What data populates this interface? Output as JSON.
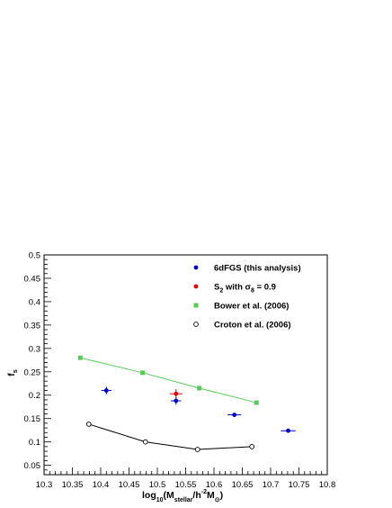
{
  "chart_data": {
    "type": "scatter",
    "xlabel_parts": {
      "base": "log",
      "base_sub": "10",
      "open": "(M",
      "m_sub": "stellar",
      "mid": "/h",
      "exp": "-2",
      "m2": "M",
      "sun": "⊙",
      "close": ")"
    },
    "ylabel_parts": {
      "base": "f",
      "sub": "s"
    },
    "xlim": [
      10.3,
      10.8
    ],
    "ylim": [
      0.03,
      0.5
    ],
    "x_ticks": [
      "10.3",
      "10.35",
      "10.4",
      "10.45",
      "10.5",
      "10.55",
      "10.6",
      "10.65",
      "10.7",
      "10.75",
      "10.8"
    ],
    "y_ticks": [
      "0.05",
      "0.1",
      "0.15",
      "0.2",
      "0.25",
      "0.3",
      "0.35",
      "0.4",
      "0.45",
      "0.5"
    ],
    "x_tick_values": [
      10.3,
      10.35,
      10.4,
      10.45,
      10.5,
      10.55,
      10.6,
      10.65,
      10.7,
      10.75,
      10.8
    ],
    "y_tick_values": [
      0.05,
      0.1,
      0.15,
      0.2,
      0.25,
      0.3,
      0.35,
      0.4,
      0.45,
      0.5
    ],
    "grid": false,
    "legend_position": "top-right",
    "series": [
      {
        "name": "6dFGS (this analysis)",
        "color": "#0000cc",
        "marker": "filled-circle",
        "points": [
          {
            "x": 10.41,
            "y": 0.21,
            "xerr": 0.009,
            "yerr": 0.008
          },
          {
            "x": 10.533,
            "y": 0.188,
            "xerr": 0.009,
            "yerr": 0.008
          },
          {
            "x": 10.636,
            "y": 0.158,
            "xerr": 0.012,
            "yerr": 0.004
          },
          {
            "x": 10.731,
            "y": 0.124,
            "xerr": 0.013,
            "yerr": 0.002
          }
        ]
      },
      {
        "name": "S_2 with σ_8 = 0.9",
        "name_parts": {
          "s": "S",
          "s_sub": "2",
          "with": " with ",
          "sigma": "σ",
          "sigma_sub": "8",
          "eq": " = 0.9"
        },
        "color": "#e00000",
        "marker": "filled-circle",
        "points": [
          {
            "x": 10.533,
            "y": 0.203,
            "xerr": 0.011,
            "yerr": 0.01
          }
        ]
      },
      {
        "name": "Bower et al. (2006)",
        "color": "#55cc55",
        "marker": "filled-square",
        "line": true,
        "points": [
          {
            "x": 10.364,
            "y": 0.28
          },
          {
            "x": 10.474,
            "y": 0.248
          },
          {
            "x": 10.574,
            "y": 0.215
          },
          {
            "x": 10.675,
            "y": 0.184
          }
        ]
      },
      {
        "name": "Croton et al. (2006)",
        "color": "#000000",
        "marker": "open-circle",
        "line": true,
        "points": [
          {
            "x": 10.379,
            "y": 0.138
          },
          {
            "x": 10.479,
            "y": 0.1
          },
          {
            "x": 10.571,
            "y": 0.084
          },
          {
            "x": 10.667,
            "y": 0.09
          }
        ]
      }
    ]
  }
}
